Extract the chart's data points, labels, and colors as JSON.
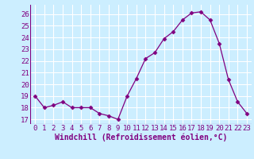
{
  "x": [
    0,
    1,
    2,
    3,
    4,
    5,
    6,
    7,
    8,
    9,
    10,
    11,
    12,
    13,
    14,
    15,
    16,
    17,
    18,
    19,
    20,
    21,
    22,
    23
  ],
  "y": [
    19,
    18,
    18.2,
    18.5,
    18,
    18,
    18,
    17.5,
    17.3,
    17,
    19,
    20.5,
    22.2,
    22.7,
    23.9,
    24.5,
    25.5,
    26.1,
    26.2,
    25.5,
    23.5,
    20.4,
    18.5,
    17.5
  ],
  "line_color": "#800080",
  "marker": "D",
  "marker_size": 2.5,
  "bg_color": "#cceeff",
  "grid_color": "#ffffff",
  "xlabel": "Windchill (Refroidissement éolien,°C)",
  "xlabel_color": "#800080",
  "yticks": [
    17,
    18,
    19,
    20,
    21,
    22,
    23,
    24,
    25,
    26
  ],
  "xtick_labels": [
    "0",
    "1",
    "2",
    "3",
    "4",
    "5",
    "6",
    "7",
    "8",
    "9",
    "10",
    "11",
    "12",
    "13",
    "14",
    "15",
    "16",
    "17",
    "18",
    "19",
    "20",
    "21",
    "22",
    "23"
  ],
  "ylim": [
    16.6,
    26.8
  ],
  "xlim": [
    -0.5,
    23.5
  ],
  "tick_color": "#800080",
  "tick_fontsize": 6.5,
  "xlabel_fontsize": 7
}
